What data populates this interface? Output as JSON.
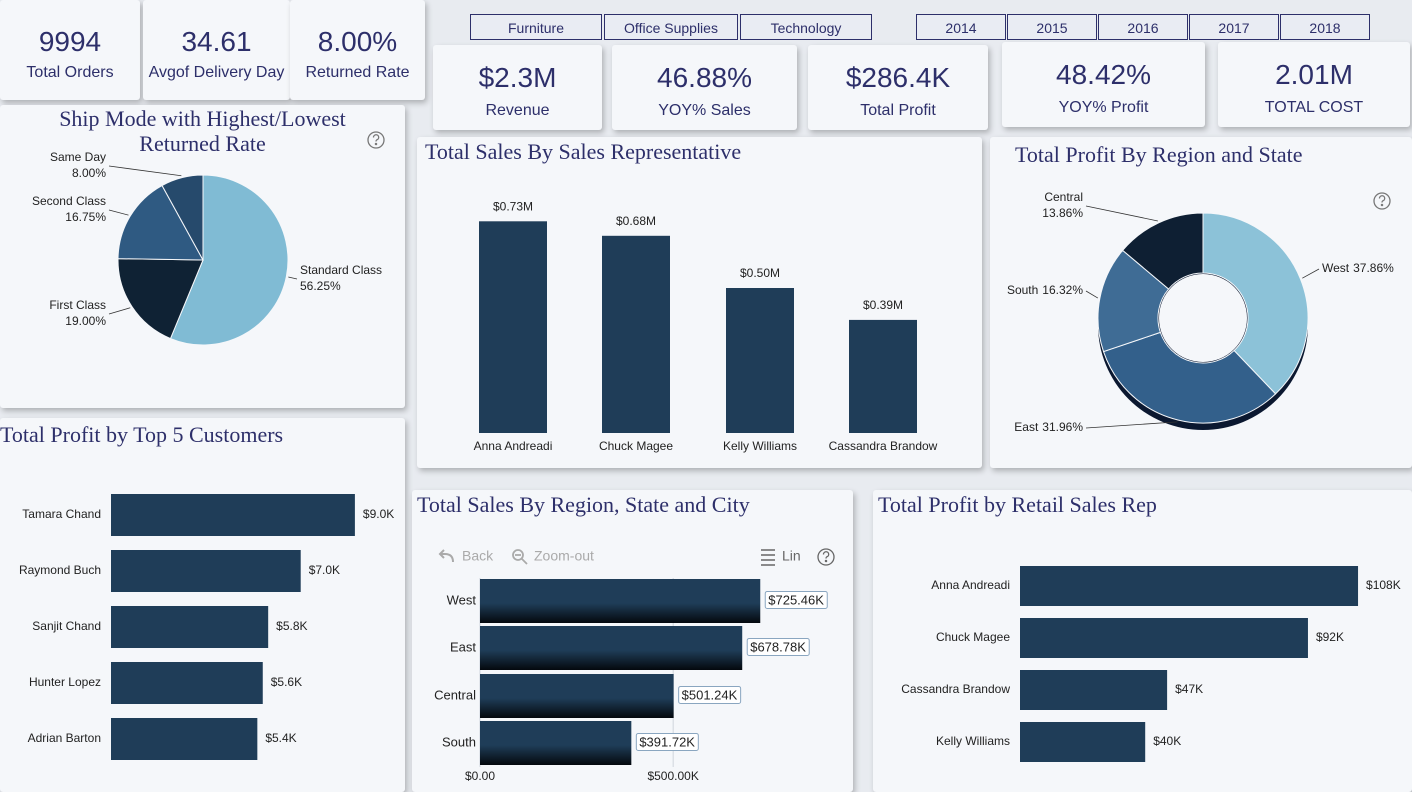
{
  "filters": {
    "category": [
      "Furniture",
      "Office Supplies",
      "Technology"
    ],
    "year": [
      "2014",
      "2015",
      "2016",
      "2017",
      "2018"
    ]
  },
  "kpis": [
    {
      "value": "9994",
      "label": "Total Orders"
    },
    {
      "value": "34.61",
      "label": "Avgof Delivery Day"
    },
    {
      "value": "8.00%",
      "label": "Returned Rate"
    },
    {
      "value": "$2.3M",
      "label": "Revenue"
    },
    {
      "value": "46.88%",
      "label": "YOY% Sales"
    },
    {
      "value": "$286.4K",
      "label": "Total Profit"
    },
    {
      "value": "48.42%",
      "label": "YOY% Profit"
    },
    {
      "value": "2.01M",
      "label": "TOTAL COST"
    }
  ],
  "chart_data": [
    {
      "type": "pie",
      "title": "Ship Mode with Highest/Lowest Returned Rate",
      "categories": [
        "Standard Class",
        "First Class",
        "Second Class",
        "Same Day"
      ],
      "values": [
        56.25,
        19.0,
        16.75,
        8.0
      ],
      "value_labels": [
        "56.25%",
        "19.00%",
        "16.75%",
        "8.00%"
      ],
      "colors": [
        "#80bbd4",
        "#0f2234",
        "#2f5a82",
        "#264a6c"
      ]
    },
    {
      "type": "bar",
      "title": "Total Sales By Sales Representative",
      "categories": [
        "Anna Andreadi",
        "Chuck Magee",
        "Kelly Williams",
        "Cassandra Brandow"
      ],
      "values": [
        0.73,
        0.68,
        0.5,
        0.39
      ],
      "value_labels": [
        "$0.73M",
        "$0.68M",
        "$0.50M",
        "$0.39M"
      ],
      "color": "#1f3d58"
    },
    {
      "type": "donut",
      "title": "Total Profit By Region and State",
      "categories": [
        "West",
        "East",
        "South",
        "Central"
      ],
      "values": [
        37.86,
        31.96,
        16.32,
        13.86
      ],
      "value_labels": [
        "37.86%",
        "31.96%",
        "16.32%",
        "13.86%"
      ],
      "colors": [
        "#8cc2d8",
        "#33608b",
        "#3f6c95",
        "#0e1f33"
      ]
    },
    {
      "type": "barh",
      "title": "Total Profit by Top 5 Customers",
      "categories": [
        "Tamara Chand",
        "Raymond Buch",
        "Sanjit Chand",
        "Hunter Lopez",
        "Adrian Barton"
      ],
      "values": [
        9.0,
        7.0,
        5.8,
        5.6,
        5.4
      ],
      "value_labels": [
        "$9.0K",
        "$7.0K",
        "$5.8K",
        "$5.6K",
        "$5.4K"
      ],
      "color": "#1f3d58"
    },
    {
      "type": "barh",
      "title": "Total Sales By Region, State and City",
      "toolbar": [
        "Back",
        "Zoom-out",
        "Lin"
      ],
      "categories": [
        "West",
        "East",
        "Central",
        "South"
      ],
      "values": [
        725460,
        678780,
        501240,
        391720
      ],
      "value_labels": [
        "$725.46K",
        "$678.78K",
        "$501.24K",
        "$391.72K"
      ],
      "xlim": [
        0,
        950000
      ],
      "xticks": [
        {
          "value": 0,
          "label": "$0.00"
        },
        {
          "value": 500000,
          "label": "$500.00K"
        }
      ],
      "grid": true,
      "color": "#1f3d58"
    },
    {
      "type": "barh",
      "title": "Total Profit by Retail Sales Rep",
      "categories": [
        "Anna Andreadi",
        "Chuck Magee",
        "Cassandra Brandow",
        "Kelly Williams"
      ],
      "values": [
        108,
        92,
        47,
        40
      ],
      "value_labels": [
        "$108K",
        "$92K",
        "$47K",
        "$40K"
      ],
      "color": "#1f3d58"
    }
  ]
}
